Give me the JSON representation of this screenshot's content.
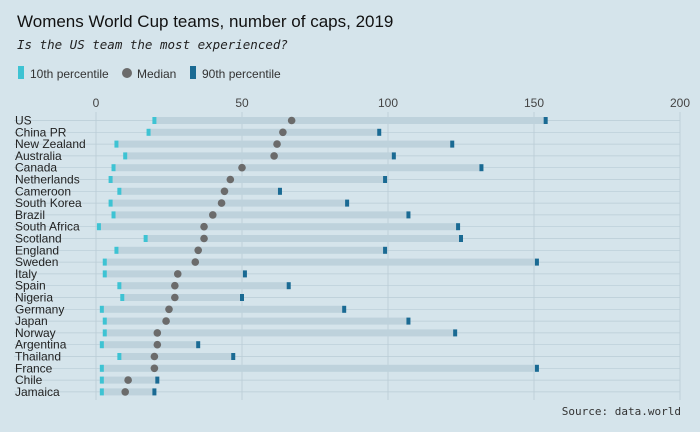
{
  "title": "Womens World Cup teams, number of caps, 2019",
  "subtitle": "Is the US team the most experienced?",
  "caption": "Source: data.world",
  "colors": {
    "background": "#d5e4eb",
    "range_bar": "#bed2dc",
    "p10": "#3ec3d3",
    "median": "#6b6b6b",
    "p90": "#1a6a93",
    "grid": "#b9ccd6"
  },
  "legend": [
    {
      "key": "p10",
      "label": "10th percentile",
      "shape": "bar"
    },
    {
      "key": "median",
      "label": "Median",
      "shape": "dot"
    },
    {
      "key": "p90",
      "label": "90th percentile",
      "shape": "bar"
    }
  ],
  "chart_data": {
    "type": "dot-range",
    "title": "Womens World Cup teams, number of caps, 2019",
    "subtitle": "Is the US team the most experienced?",
    "xlabel": "",
    "ylabel": "",
    "xlim": [
      0,
      200
    ],
    "xticks": [
      0,
      50,
      100,
      150,
      200
    ],
    "grid": true,
    "legend_position": "top-left",
    "categories": [
      "US",
      "China PR",
      "New Zealand",
      "Australia",
      "Canada",
      "Netherlands",
      "Cameroon",
      "South Korea",
      "Brazil",
      "South Africa",
      "Scotland",
      "England",
      "Sweden",
      "Italy",
      "Spain",
      "Nigeria",
      "Germany",
      "Japan",
      "Norway",
      "Argentina",
      "Thailand",
      "France",
      "Chile",
      "Jamaica"
    ],
    "series": [
      {
        "name": "10th percentile",
        "values": [
          20,
          18,
          7,
          10,
          6,
          5,
          8,
          5,
          6,
          1,
          17,
          7,
          3,
          3,
          8,
          9,
          2,
          3,
          3,
          2,
          8,
          2,
          2,
          2
        ]
      },
      {
        "name": "Median",
        "values": [
          67,
          64,
          62,
          61,
          50,
          46,
          44,
          43,
          40,
          37,
          37,
          35,
          34,
          28,
          27,
          27,
          25,
          24,
          21,
          21,
          20,
          20,
          11,
          10
        ]
      },
      {
        "name": "90th percentile",
        "values": [
          154,
          97,
          122,
          102,
          132,
          99,
          63,
          86,
          107,
          124,
          125,
          99,
          151,
          51,
          66,
          50,
          85,
          107,
          123,
          35,
          47,
          151,
          21,
          20
        ]
      }
    ]
  }
}
